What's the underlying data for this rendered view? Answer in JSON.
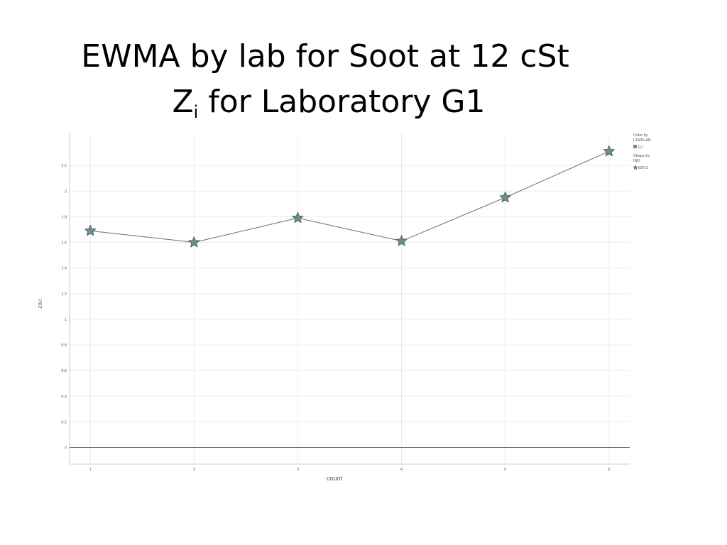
{
  "slide": {
    "title_line1": "EWMA by lab for Soot at 12 cSt",
    "title_line2_prefix": "Z",
    "title_line2_subscript": "i",
    "title_line2_suffix": " for Laboratory G1"
  },
  "chart_data": {
    "type": "line",
    "xlabel": "count",
    "ylabel": "ZIUI",
    "x": [
      1,
      2,
      3,
      4,
      5,
      6
    ],
    "xlim": [
      0.8,
      6.2
    ],
    "ylim": [
      -0.13,
      2.45
    ],
    "x_ticks": [
      1,
      2,
      3,
      4,
      5,
      6
    ],
    "y_ticks": [
      0,
      0.2,
      0.4,
      0.6,
      0.8,
      1,
      1.2,
      1.4,
      1.6,
      1.8,
      2,
      2.2
    ],
    "y_tick_labels": [
      "0",
      "0.2",
      "0.4",
      "0.6",
      "0.8",
      "1",
      "1.2",
      "1.4",
      "1.6",
      "1.8",
      "2",
      "2.2"
    ],
    "grid": true,
    "reference_line_y": 0,
    "series": [
      {
        "name": "G1",
        "marker": "star",
        "values": [
          1.69,
          1.6,
          1.79,
          1.61,
          1.95,
          2.31
        ]
      }
    ],
    "legend": {
      "placement": "top-right",
      "color_title_line1": "Color by",
      "color_title_line2": "LTMSLAB",
      "color_item": "G1",
      "shape_title_line1": "Shape by",
      "shape_title_line2": "IND",
      "shape_item": "820-3"
    },
    "colors": {
      "marker_fill": "#6d8e90",
      "marker_stroke": "#3e5759",
      "line": "#7a7a7a",
      "grid": "#e6e6e6",
      "zero_line": "#666666",
      "axis": "#bbbbbb",
      "text": "#555555"
    }
  }
}
